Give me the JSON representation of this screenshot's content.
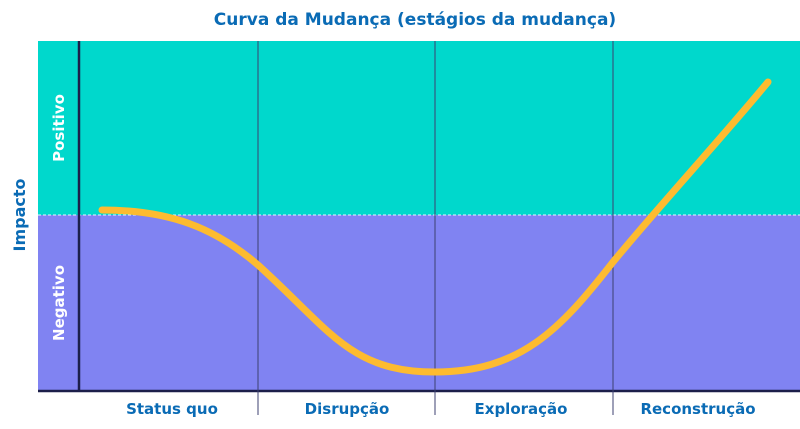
{
  "title": "Curva da Mudança (estágios da mudança)",
  "y_axis_label": "Impacto",
  "zones": {
    "positive": "Positivo",
    "negative": "Negativo"
  },
  "stages": [
    "Status quo",
    "Disrupção",
    "Exploração",
    "Reconstrução"
  ],
  "colors": {
    "positive": "#00d8cc",
    "negative": "#8083f2",
    "curve": "#fdbb30",
    "text": "#0a6bb5",
    "axis": "#1c1f4a"
  }
}
